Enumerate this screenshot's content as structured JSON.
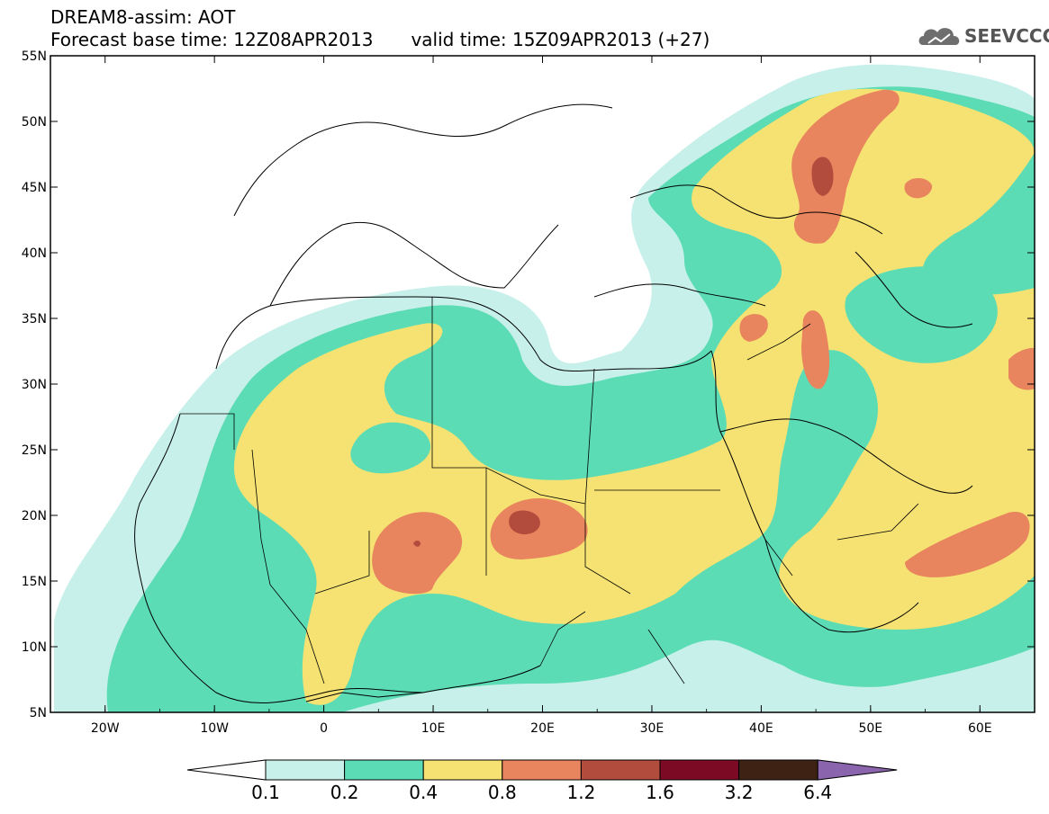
{
  "header": {
    "title": "DREAM8-assim: AOT",
    "base_time": "Forecast base time: 12Z08APR2013",
    "valid_time": "valid time: 15Z09APR2013 (+27)",
    "logo_text": "SEEVCCC"
  },
  "axes": {
    "lat_labels": [
      "55N",
      "50N",
      "45N",
      "40N",
      "35N",
      "30N",
      "25N",
      "20N",
      "15N",
      "10N",
      "5N"
    ],
    "lon_labels": [
      "20W",
      "10W",
      "0",
      "10E",
      "20E",
      "30E",
      "40E",
      "50E",
      "60E"
    ]
  },
  "colorbar": {
    "labels": [
      "0.1",
      "0.2",
      "0.4",
      "0.8",
      "1.2",
      "1.6",
      "3.2",
      "6.4"
    ],
    "colors": [
      "#c8f0ea",
      "#5cdcb4",
      "#f5e272",
      "#e8845e",
      "#b24c3c",
      "#7c0a24",
      "#3e2314",
      "#8a64ac"
    ]
  },
  "colors": {
    "c01": "#c8f0ea",
    "c02": "#5cdcb4",
    "c04": "#f5e272",
    "c08": "#e8845e",
    "c12": "#b24c3c",
    "background": "#ffffff"
  }
}
